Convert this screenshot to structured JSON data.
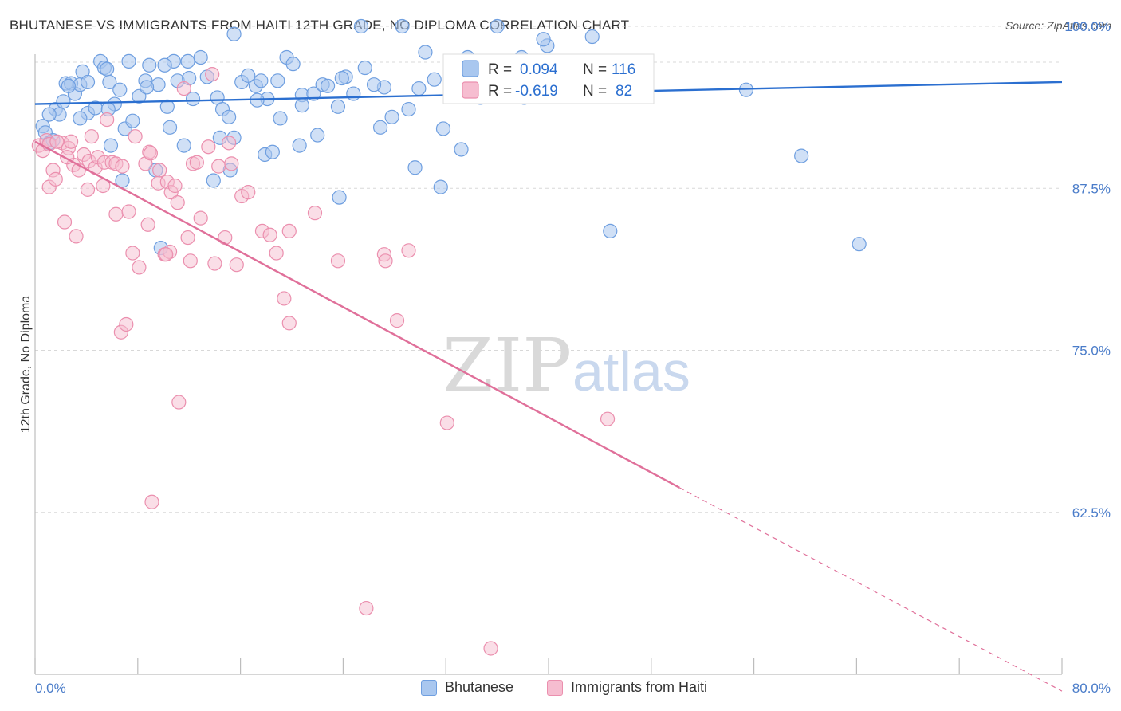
{
  "title": "BHUTANESE VS IMMIGRANTS FROM HAITI 12TH GRADE, NO DIPLOMA CORRELATION CHART",
  "source": "Source: ZipAtlas.com",
  "watermark": {
    "zip": "ZIP",
    "atlas": "atlas"
  },
  "legend_top": {
    "rows": [
      {
        "r_label": "R =",
        "r_value": "0.094",
        "n_label": "N =",
        "n_value": "116"
      },
      {
        "r_label": "R =",
        "r_value": "-0.619",
        "n_label": "N =",
        "n_value": "82"
      }
    ]
  },
  "legend_bottom": [
    "Bhutanese",
    "Immigrants from Haiti"
  ],
  "colors": {
    "blue_fill": "#a9c7ef",
    "blue_stroke": "#6f9fe0",
    "blue_line": "#2b6fd0",
    "pink_fill": "#f6bdd0",
    "pink_stroke": "#eb8fae",
    "pink_line": "#e0709a",
    "grid": "#d8d8d8",
    "tick_text": "#4a7cc9"
  },
  "chart_data": {
    "type": "scatter",
    "title": "BHUTANESE VS IMMIGRANTS FROM HAITI 12TH GRADE, NO DIPLOMA CORRELATION CHART",
    "xlabel": "",
    "ylabel": "12th Grade, No Diploma",
    "xlim": [
      0,
      80
    ],
    "ylim": [
      50,
      100
    ],
    "x_tick_labels": [
      "0.0%",
      "80.0%"
    ],
    "y_ticks": [
      62.5,
      75.0,
      87.5,
      100.0
    ],
    "y_tick_labels": [
      "62.5%",
      "75.0%",
      "87.5%",
      "100.0%"
    ],
    "grid": "horizontal dashed",
    "legend_placement": "top-center",
    "series": [
      {
        "name": "Bhutanese",
        "r": 0.094,
        "n": 116,
        "trend": {
          "x": [
            0,
            80
          ],
          "y": [
            94.0,
            95.7
          ]
        },
        "points": [
          [
            0.6,
            92.3
          ],
          [
            0.8,
            91.8
          ],
          [
            1.1,
            91.0
          ],
          [
            1.4,
            91.2
          ],
          [
            1.6,
            93.6
          ],
          [
            1.9,
            93.2
          ],
          [
            2.2,
            94.2
          ],
          [
            2.4,
            95.6
          ],
          [
            2.8,
            95.6
          ],
          [
            3.1,
            94.8
          ],
          [
            3.5,
            95.5
          ],
          [
            3.7,
            96.5
          ],
          [
            4.1,
            95.7
          ],
          [
            4.1,
            93.3
          ],
          [
            4.7,
            93.7
          ],
          [
            5.1,
            97.3
          ],
          [
            5.4,
            96.8
          ],
          [
            5.6,
            96.7
          ],
          [
            5.8,
            95.7
          ],
          [
            6.2,
            94.0
          ],
          [
            6.6,
            95.1
          ],
          [
            7.0,
            92.1
          ],
          [
            7.3,
            97.3
          ],
          [
            8.1,
            94.6
          ],
          [
            8.6,
            95.8
          ],
          [
            8.9,
            97.0
          ],
          [
            9.6,
            95.5
          ],
          [
            10.3,
            93.8
          ],
          [
            10.5,
            92.2
          ],
          [
            10.8,
            97.3
          ],
          [
            11.1,
            95.8
          ],
          [
            11.6,
            90.8
          ],
          [
            11.9,
            97.3
          ],
          [
            12.3,
            94.4
          ],
          [
            12.9,
            97.6
          ],
          [
            13.4,
            96.1
          ],
          [
            14.2,
            94.5
          ],
          [
            14.6,
            93.6
          ],
          [
            15.1,
            93.0
          ],
          [
            15.5,
            91.4
          ],
          [
            16.1,
            95.7
          ],
          [
            16.6,
            96.2
          ],
          [
            17.2,
            95.4
          ],
          [
            17.6,
            95.8
          ],
          [
            18.1,
            94.4
          ],
          [
            18.9,
            95.8
          ],
          [
            19.6,
            97.6
          ],
          [
            20.1,
            97.1
          ],
          [
            20.8,
            94.7
          ],
          [
            21.7,
            94.8
          ],
          [
            22.4,
            95.5
          ],
          [
            22.8,
            95.4
          ],
          [
            23.6,
            93.8
          ],
          [
            24.2,
            96.1
          ],
          [
            24.8,
            94.8
          ],
          [
            25.7,
            96.8
          ],
          [
            26.9,
            92.2
          ],
          [
            27.2,
            95.3
          ],
          [
            27.8,
            93.0
          ],
          [
            29.1,
            93.6
          ],
          [
            29.9,
            95.2
          ],
          [
            31.1,
            95.9
          ],
          [
            31.8,
            92.1
          ],
          [
            32.6,
            95.9
          ],
          [
            33.7,
            97.6
          ],
          [
            34.7,
            94.5
          ],
          [
            35.3,
            96.2
          ],
          [
            35.9,
            95.8
          ],
          [
            36.4,
            95.6
          ],
          [
            37.3,
            96.8
          ],
          [
            38.1,
            94.5
          ],
          [
            38.8,
            96.1
          ],
          [
            39.1,
            95.8
          ],
          [
            39.9,
            98.5
          ],
          [
            2.6,
            95.4
          ],
          [
            5.9,
            90.8
          ],
          [
            6.8,
            88.1
          ],
          [
            9.4,
            88.9
          ],
          [
            9.8,
            82.9
          ],
          [
            13.9,
            88.1
          ],
          [
            15.2,
            88.9
          ],
          [
            17.9,
            90.1
          ],
          [
            18.5,
            90.3
          ],
          [
            20.6,
            90.8
          ],
          [
            23.7,
            86.8
          ],
          [
            29.6,
            89.1
          ],
          [
            31.6,
            87.6
          ],
          [
            33.2,
            90.5
          ],
          [
            44.8,
            95.1
          ],
          [
            55.4,
            95.1
          ],
          [
            59.7,
            90.0
          ],
          [
            44.8,
            84.2
          ],
          [
            64.2,
            83.2
          ],
          [
            37.9,
            97.6
          ],
          [
            43.4,
            99.2
          ],
          [
            36.0,
            100.0
          ],
          [
            39.6,
            99.0
          ],
          [
            25.4,
            100.0
          ],
          [
            28.6,
            100.0
          ],
          [
            15.5,
            99.4
          ],
          [
            23.9,
            96.0
          ],
          [
            10.1,
            97.0
          ],
          [
            12.0,
            96.0
          ],
          [
            5.7,
            93.6
          ],
          [
            8.7,
            95.3
          ],
          [
            20.8,
            93.9
          ],
          [
            22.0,
            91.6
          ],
          [
            14.4,
            91.4
          ],
          [
            17.3,
            94.3
          ],
          [
            26.4,
            95.5
          ],
          [
            30.4,
            98.0
          ],
          [
            33.9,
            95.8
          ],
          [
            3.5,
            92.9
          ],
          [
            1.1,
            93.2
          ],
          [
            7.6,
            92.7
          ],
          [
            19.1,
            92.9
          ]
        ]
      },
      {
        "name": "Immigrants from Haiti",
        "r": -0.619,
        "n": 82,
        "trend": {
          "x": [
            0,
            50.2,
            80
          ],
          "y": [
            91.1,
            64.4,
            48.7
          ],
          "solid_until_x": 50.2
        },
        "points": [
          [
            0.3,
            90.8
          ],
          [
            0.6,
            90.4
          ],
          [
            0.9,
            91.2
          ],
          [
            1.1,
            90.9
          ],
          [
            1.1,
            87.6
          ],
          [
            1.4,
            88.9
          ],
          [
            1.6,
            88.2
          ],
          [
            2.1,
            91.0
          ],
          [
            2.3,
            84.9
          ],
          [
            2.6,
            90.6
          ],
          [
            2.8,
            91.1
          ],
          [
            3.0,
            89.3
          ],
          [
            3.2,
            83.8
          ],
          [
            3.4,
            88.9
          ],
          [
            3.8,
            90.1
          ],
          [
            4.2,
            89.6
          ],
          [
            4.4,
            91.5
          ],
          [
            4.7,
            89.1
          ],
          [
            4.9,
            89.9
          ],
          [
            5.3,
            87.7
          ],
          [
            5.4,
            89.5
          ],
          [
            5.6,
            92.8
          ],
          [
            6.0,
            89.5
          ],
          [
            6.3,
            89.4
          ],
          [
            6.3,
            85.5
          ],
          [
            6.7,
            76.4
          ],
          [
            6.8,
            89.2
          ],
          [
            7.1,
            77.0
          ],
          [
            7.3,
            85.7
          ],
          [
            7.6,
            82.5
          ],
          [
            7.8,
            91.5
          ],
          [
            8.1,
            81.4
          ],
          [
            8.6,
            89.4
          ],
          [
            8.8,
            84.7
          ],
          [
            8.9,
            90.3
          ],
          [
            9.1,
            63.3
          ],
          [
            9.6,
            87.9
          ],
          [
            9.7,
            88.9
          ],
          [
            10.1,
            82.4
          ],
          [
            10.3,
            88.0
          ],
          [
            10.5,
            82.6
          ],
          [
            10.6,
            87.2
          ],
          [
            10.9,
            87.7
          ],
          [
            11.1,
            86.4
          ],
          [
            11.2,
            71.0
          ],
          [
            11.6,
            95.2
          ],
          [
            11.9,
            83.7
          ],
          [
            12.1,
            81.9
          ],
          [
            12.3,
            89.4
          ],
          [
            12.6,
            89.5
          ],
          [
            12.9,
            85.2
          ],
          [
            13.5,
            90.7
          ],
          [
            13.8,
            96.3
          ],
          [
            14.0,
            81.7
          ],
          [
            14.3,
            89.2
          ],
          [
            14.8,
            83.7
          ],
          [
            15.3,
            89.4
          ],
          [
            15.7,
            81.6
          ],
          [
            16.1,
            86.9
          ],
          [
            16.6,
            87.2
          ],
          [
            17.7,
            84.2
          ],
          [
            18.3,
            83.9
          ],
          [
            18.8,
            82.5
          ],
          [
            19.4,
            79.0
          ],
          [
            19.8,
            84.2
          ],
          [
            19.8,
            77.1
          ],
          [
            21.8,
            85.6
          ],
          [
            23.6,
            81.9
          ],
          [
            25.8,
            55.1
          ],
          [
            27.2,
            82.4
          ],
          [
            27.3,
            81.9
          ],
          [
            28.2,
            77.3
          ],
          [
            29.1,
            82.7
          ],
          [
            32.1,
            69.4
          ],
          [
            35.5,
            52.0
          ],
          [
            44.6,
            69.7
          ],
          [
            10.2,
            82.4
          ],
          [
            15.1,
            91.0
          ],
          [
            4.1,
            87.4
          ],
          [
            1.7,
            91.1
          ],
          [
            2.5,
            89.9
          ],
          [
            9.0,
            90.2
          ]
        ]
      }
    ]
  }
}
